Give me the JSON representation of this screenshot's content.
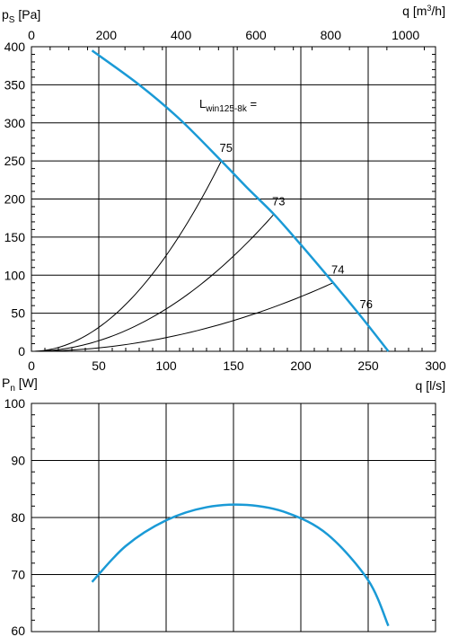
{
  "chart_data": [
    {
      "type": "line",
      "ylabel": {
        "main": "p",
        "sub": "S",
        "unit": " [Pa]"
      },
      "xlabel_bottom": "q [l/s]",
      "xlabel_top": {
        "main": "q [m",
        "sup": "3",
        "rest": "/h]"
      },
      "xlim": [
        0,
        300
      ],
      "ylim": [
        0,
        400
      ],
      "x_ticks": [
        0,
        50,
        100,
        150,
        200,
        250,
        300
      ],
      "y_ticks": [
        0,
        50,
        100,
        150,
        200,
        250,
        300,
        350,
        400
      ],
      "x_top_ticks": [
        0,
        200,
        400,
        600,
        800,
        1000
      ],
      "grid": true,
      "annotation": {
        "main": "L",
        "sub": "win125-8k",
        "rest": " ="
      },
      "fan_curve": {
        "color": "#1a9ad6",
        "x": [
          45,
          80,
          110,
          141,
          160,
          180,
          200,
          224,
          245,
          265
        ],
        "y": [
          395,
          350,
          305,
          250,
          215,
          180,
          140,
          90,
          45,
          0
        ]
      },
      "system_curves": [
        {
          "label": "75",
          "x_end": 141,
          "y_end": 250
        },
        {
          "label": "73",
          "x_end": 180,
          "y_end": 180
        },
        {
          "label": "74",
          "x_end": 224,
          "y_end": 90
        }
      ],
      "point_labels": [
        {
          "label": "75",
          "x": 141,
          "y": 250
        },
        {
          "label": "73",
          "x": 180,
          "y": 180
        },
        {
          "label": "74",
          "x": 224,
          "y": 90
        },
        {
          "label": "76",
          "x": 245,
          "y": 45
        }
      ]
    },
    {
      "type": "line",
      "ylabel": {
        "main": "P",
        "sub": "n",
        "unit": " [W]"
      },
      "ylim": [
        60,
        100
      ],
      "y_ticks": [
        60,
        70,
        80,
        90,
        100
      ],
      "grid": true,
      "power_curve": {
        "color": "#1a9ad6",
        "x": [
          45,
          70,
          100,
          130,
          160,
          190,
          220,
          250,
          265
        ],
        "y": [
          68.7,
          75.0,
          79.5,
          81.8,
          82.2,
          80.8,
          77.0,
          69.0,
          61.0
        ]
      }
    }
  ]
}
